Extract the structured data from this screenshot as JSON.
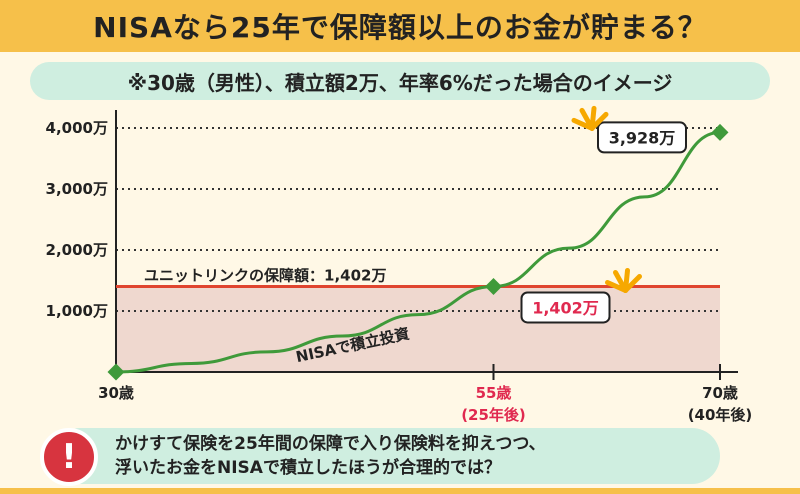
{
  "title": "NISAなら25年で保障額以上のお金が貯まる？",
  "subtitle": "※30歳（男性）、積立額2万、年率6%だった場合のイメージ",
  "note": {
    "icon": "exclamation-icon",
    "line1": "かけすて保険を25年間の保障で入り保険料を抑えつつ、",
    "line2": "浮いたお金をNISAで積立したほうが合理的では？"
  },
  "colors": {
    "accent": "#f6c04a",
    "pill": "#cfeee0",
    "line": "#3f9a3a",
    "guarantee": "#e0452f",
    "shade": "#efd8cf",
    "highlight": "#e0294f"
  },
  "chart_data": {
    "type": "line",
    "y_unit": "万円",
    "ylim": [
      0,
      4000
    ],
    "y_ticks": [
      1000,
      2000,
      3000,
      4000
    ],
    "y_tick_labels": [
      "1,000万",
      "2,000万",
      "3,000万",
      "4,000万"
    ],
    "x_ticks": [
      {
        "x": 30,
        "label": "30歳",
        "sub": ""
      },
      {
        "x": 55,
        "label": "55歳",
        "sub": "(25年後)"
      },
      {
        "x": 70,
        "label": "70歳",
        "sub": "(40年後)"
      }
    ],
    "xlim": [
      30,
      70
    ],
    "series": [
      {
        "name": "NISAで積立投資",
        "points": [
          [
            30,
            0
          ],
          [
            35,
            140
          ],
          [
            40,
            330
          ],
          [
            45,
            590
          ],
          [
            50,
            940
          ],
          [
            55,
            1402
          ],
          [
            60,
            2030
          ],
          [
            65,
            2870
          ],
          [
            70,
            3928
          ]
        ]
      }
    ],
    "guarantee": {
      "label": "ユニットリンクの保障額：1,402万",
      "value": 1402
    },
    "callouts": [
      {
        "x": 55,
        "y": 1402,
        "label": "1,402万"
      },
      {
        "x": 70,
        "y": 3928,
        "label": "3,928万"
      }
    ],
    "grid": true
  }
}
